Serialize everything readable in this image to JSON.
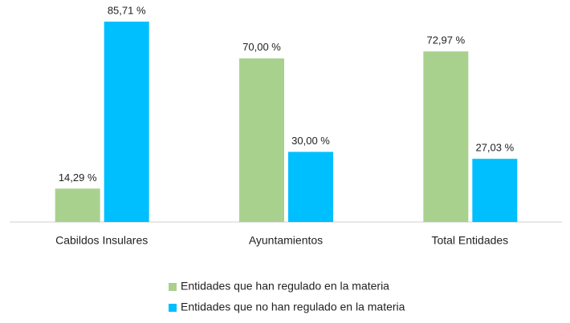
{
  "chart_data": {
    "type": "bar",
    "categories": [
      "Cabildos Insulares",
      "Ayuntamientos",
      "Total Entidades"
    ],
    "series": [
      {
        "name": "Entidades que han regulado en la materia",
        "color": "#a9d18e",
        "values": [
          14.29,
          70.0,
          72.97
        ],
        "value_labels": [
          "14,29 %",
          "70,00 %",
          "72,97 %"
        ]
      },
      {
        "name": "Entidades que no han regulado en la materia",
        "color": "#00bfff",
        "values": [
          85.71,
          30.0,
          27.03
        ],
        "value_labels": [
          "85,71 %",
          "30,00 %",
          "27,03 %"
        ]
      }
    ]
  }
}
